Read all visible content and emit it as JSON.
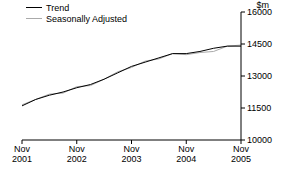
{
  "chart_data": {
    "type": "line",
    "y_label": "$m",
    "categories": [
      "Nov 2001",
      null,
      null,
      null,
      "Nov 2002",
      null,
      null,
      null,
      "Nov 2003",
      null,
      null,
      null,
      "Nov 2004",
      null,
      null,
      null,
      "Nov 2005"
    ],
    "series": [
      {
        "name": "Trend",
        "color": "#000000",
        "values": [
          11600,
          11900,
          12100,
          12250,
          12450,
          12600,
          12850,
          13150,
          13450,
          13650,
          13850,
          14050,
          14050,
          14150,
          14300,
          14400,
          14400
        ]
      },
      {
        "name": "Seasonally Adjusted",
        "color": "#aaaaaa",
        "values": [
          11650,
          11900,
          12150,
          12200,
          12500,
          12550,
          12850,
          13200,
          13400,
          13700,
          13800,
          14050,
          14000,
          14100,
          14150,
          14400,
          14450
        ]
      }
    ],
    "ylim": [
      10000,
      16000
    ],
    "yticks": [
      10000,
      11500,
      13000,
      14500,
      16000
    ],
    "grid": false,
    "legend": "top-left"
  }
}
